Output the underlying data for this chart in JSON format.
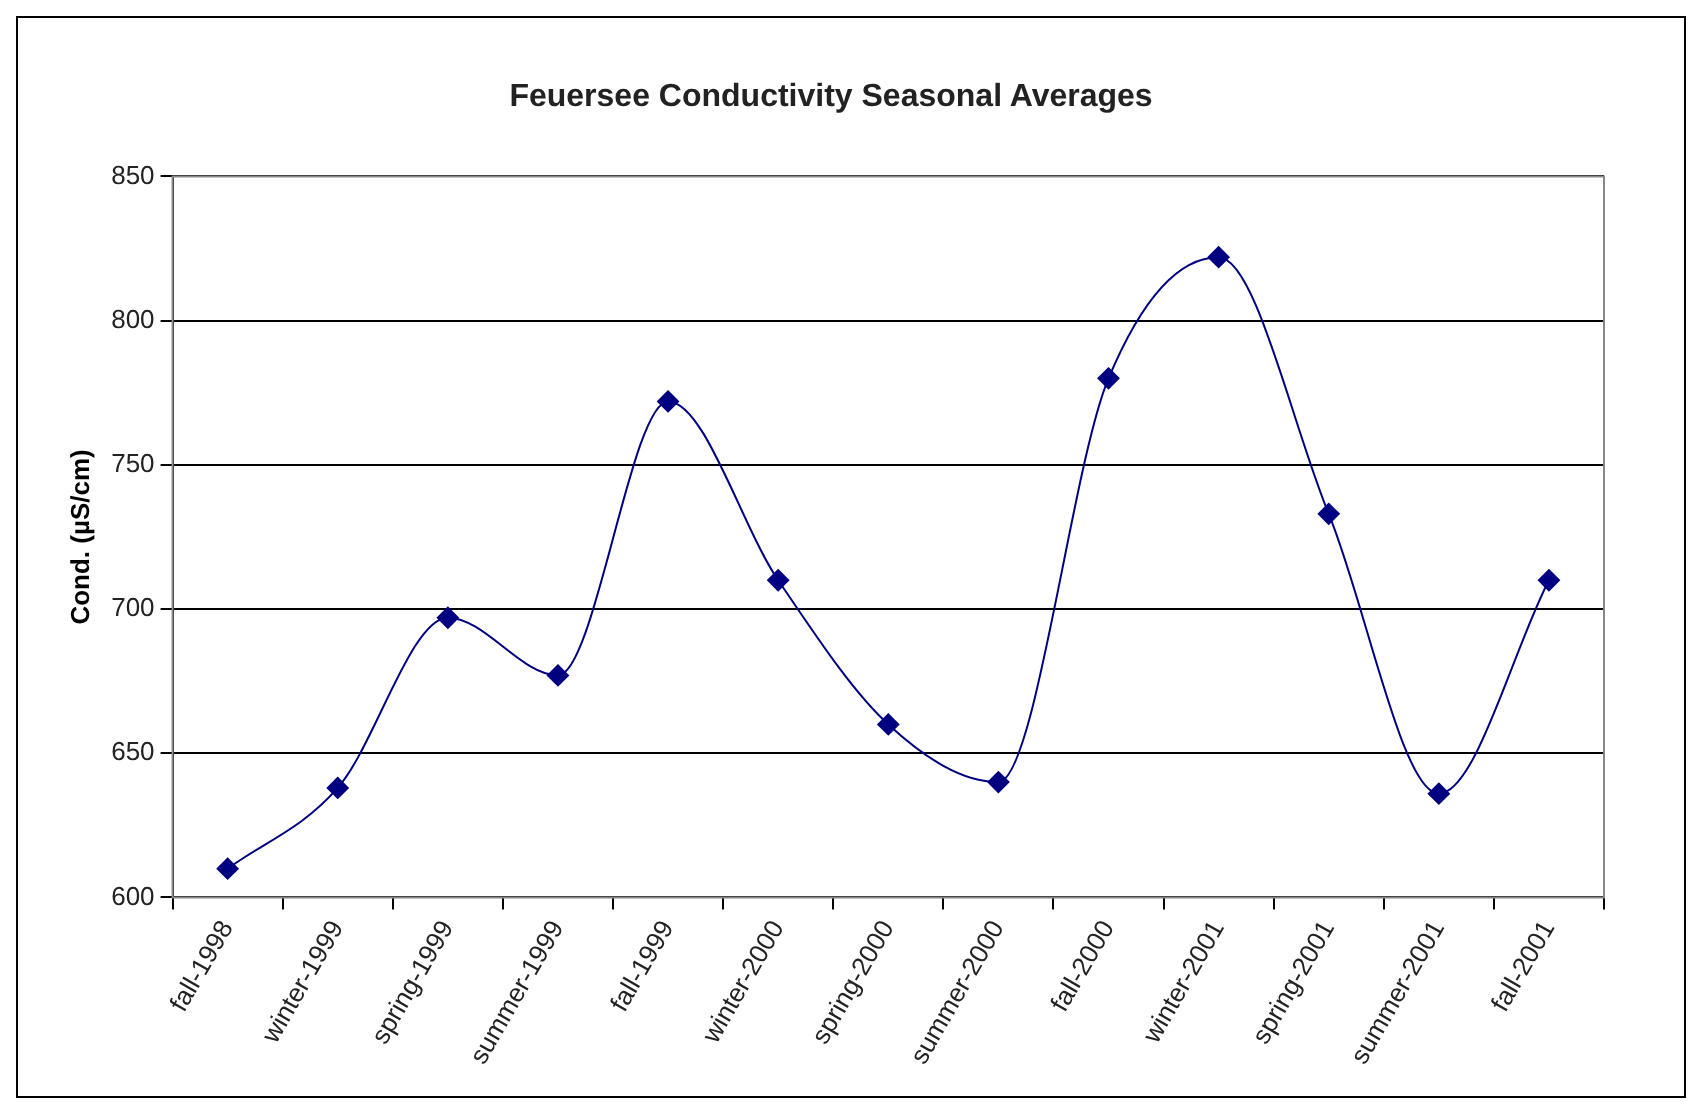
{
  "chart_data": {
    "type": "line",
    "title": "Feuersee Conductivity Seasonal Averages",
    "ylabel": "Cond. (µS/cm)",
    "categories": [
      "fall-1998",
      "winter-1999",
      "spring-1999",
      "summer-1999",
      "fall-1999",
      "winter-2000",
      "spring-2000",
      "summer-2000",
      "fall-2000",
      "winter-2001",
      "spring-2001",
      "summer-2001",
      "fall-2001"
    ],
    "series": [
      {
        "color": "#000080",
        "values": [
          610,
          638,
          697,
          677,
          772,
          710,
          660,
          640,
          780,
          822,
          733,
          636,
          710
        ]
      }
    ],
    "ylim": [
      600,
      850
    ],
    "yticks": [
      600,
      650,
      700,
      750,
      800,
      850
    ],
    "grid": "y",
    "marker": "diamond",
    "legend": false
  }
}
